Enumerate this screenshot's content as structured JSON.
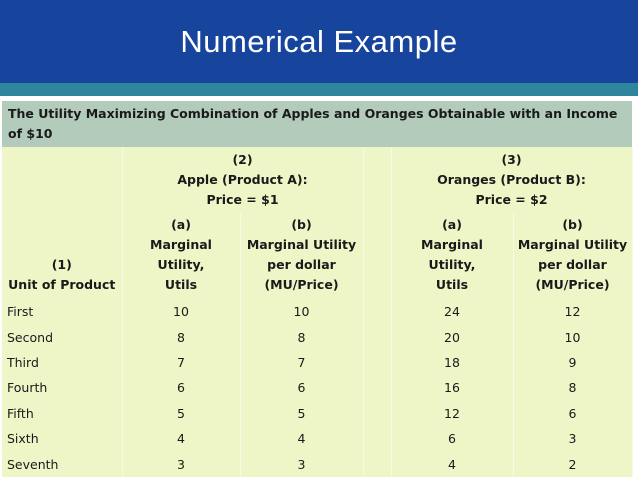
{
  "slide_title": "Numerical Example",
  "table": {
    "caption": "The Utility Maximizing Combination of Apples and Oranges Obtainable with an Income of $10",
    "col1": {
      "num": "(1)",
      "label": "Unit of Product"
    },
    "group_a": {
      "num": "(2)",
      "name": "Apple (Product A):",
      "price": "Price = $1"
    },
    "group_b": {
      "num": "(3)",
      "name": "Oranges (Product B):",
      "price": "Price = $2"
    },
    "sub_a": {
      "letter": "(a)",
      "l1": "Marginal",
      "l2": "Utility,",
      "l3": "Utils"
    },
    "sub_b": {
      "letter": "(b)",
      "l1": "Marginal Utility",
      "l2": "per dollar",
      "l3": "(MU/Price)"
    },
    "rows": [
      {
        "unit": "First",
        "a_mu": "10",
        "a_mup": "10",
        "b_mu": "24",
        "b_mup": "12"
      },
      {
        "unit": "Second",
        "a_mu": "8",
        "a_mup": "8",
        "b_mu": "20",
        "b_mup": "10"
      },
      {
        "unit": "Third",
        "a_mu": "7",
        "a_mup": "7",
        "b_mu": "18",
        "b_mup": "9"
      },
      {
        "unit": "Fourth",
        "a_mu": "6",
        "a_mup": "6",
        "b_mu": "16",
        "b_mup": "8"
      },
      {
        "unit": "Fifth",
        "a_mu": "5",
        "a_mup": "5",
        "b_mu": "12",
        "b_mup": "6"
      },
      {
        "unit": "Sixth",
        "a_mu": "4",
        "a_mup": "4",
        "b_mu": "6",
        "b_mup": "3"
      },
      {
        "unit": "Seventh",
        "a_mu": "3",
        "a_mup": "3",
        "b_mu": "4",
        "b_mup": "2"
      }
    ]
  },
  "colors": {
    "title_bar": "#17449c",
    "stripe": "#2f869c",
    "caption_bg": "#b2cbbb",
    "table_bg": "#eef5c7"
  }
}
